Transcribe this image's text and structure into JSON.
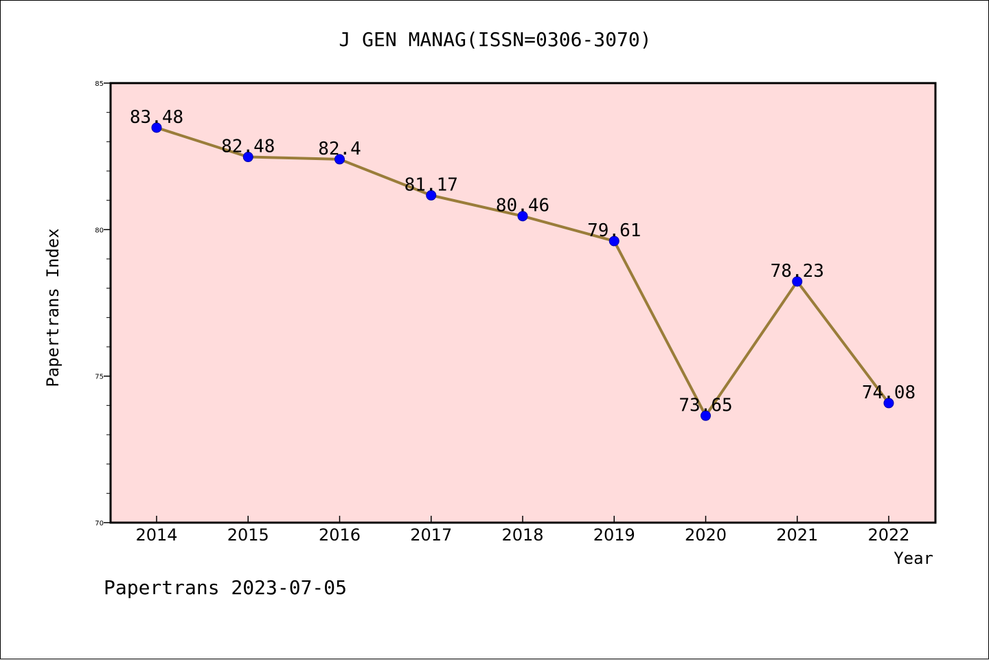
{
  "chart_data": {
    "type": "line",
    "title": "J GEN MANAG(ISSN=0306-3070)",
    "xlabel": "Year",
    "ylabel": "Papertrans Index",
    "categories": [
      "2014",
      "2015",
      "2016",
      "2017",
      "2018",
      "2019",
      "2020",
      "2021",
      "2022"
    ],
    "series": [
      {
        "values": [
          83.48,
          82.48,
          82.4,
          81.17,
          80.46,
          79.61,
          73.65,
          78.23,
          74.08
        ],
        "data_labels": [
          "83.48",
          "82.48",
          "82.4",
          "81.17",
          "80.46",
          "79.61",
          "73.65",
          "78.23",
          "74.08"
        ]
      }
    ],
    "ylim": [
      70,
      85
    ],
    "yticks": [
      70,
      75,
      80,
      85
    ],
    "grid": false,
    "legend": "none"
  },
  "footer": {
    "credit": "Papertrans 2023-07-05"
  },
  "colors": {
    "plot_background": "#ffdcdc",
    "line": "#9a7d3a",
    "marker": "#0000ff",
    "marker_edge": "#0000aa",
    "axis": "#000000",
    "text": "#000000"
  }
}
